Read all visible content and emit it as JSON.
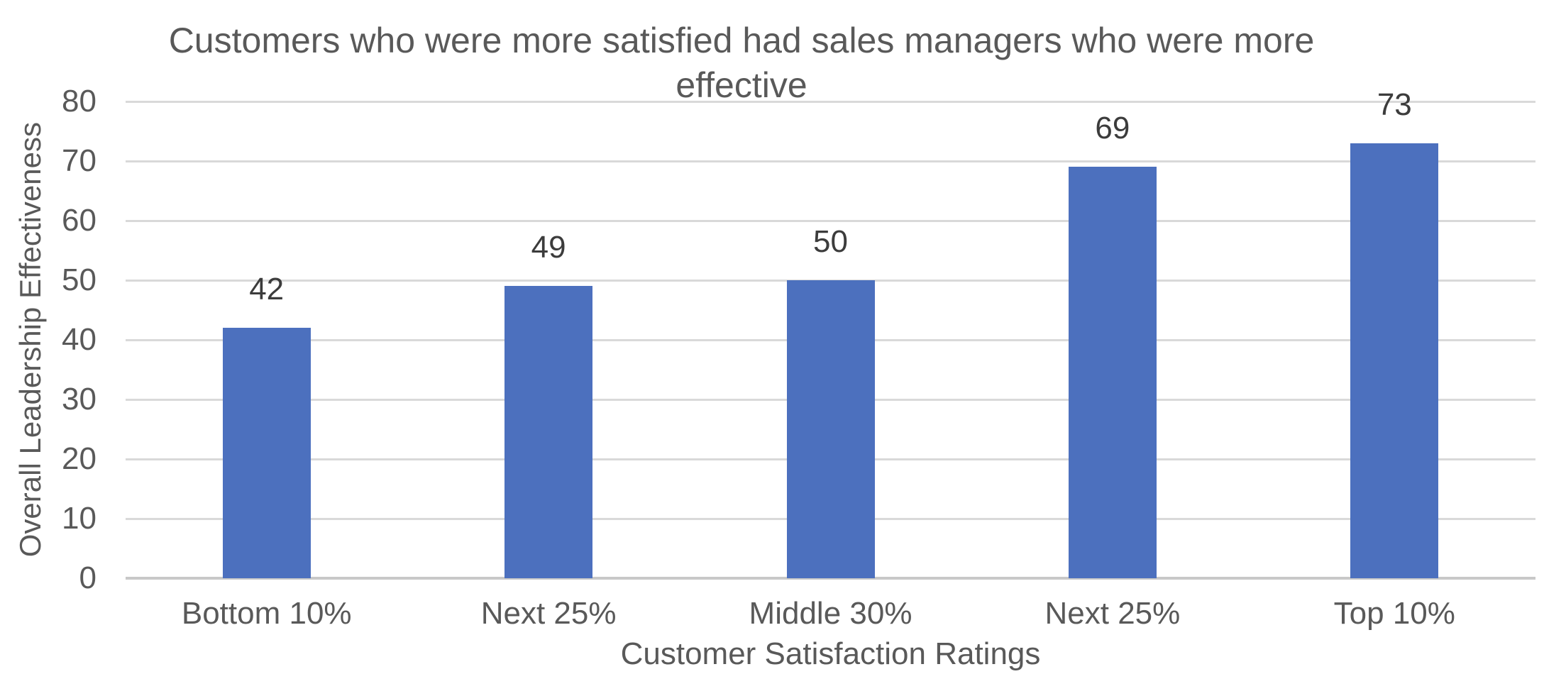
{
  "chart_data": {
    "type": "bar",
    "title": "Customers who were more satisfied had sales managers who were more effective",
    "categories": [
      "Bottom 10%",
      "Next 25%",
      "Middle 30%",
      "Next 25%",
      "Top 10%"
    ],
    "values": [
      42,
      49,
      50,
      69,
      73
    ],
    "data_labels": [
      "42",
      "49",
      "50",
      "69",
      "73"
    ],
    "xlabel": "Customer Satisfaction Ratings",
    "ylabel": "Overall Leadership Effectiveness",
    "ylim": [
      0,
      80
    ],
    "yticks": [
      0,
      10,
      20,
      30,
      40,
      50,
      60,
      70,
      80
    ],
    "grid": "horizontal-only",
    "legend": "none",
    "colors": {
      "bar": "#4c70be",
      "gridline": "#d9d9d9",
      "axis_line": "#c8c8c8",
      "axis_text": "#595959",
      "data_label_text": "#3c3c3c",
      "title_text": "#595959",
      "background": "#ffffff"
    }
  }
}
